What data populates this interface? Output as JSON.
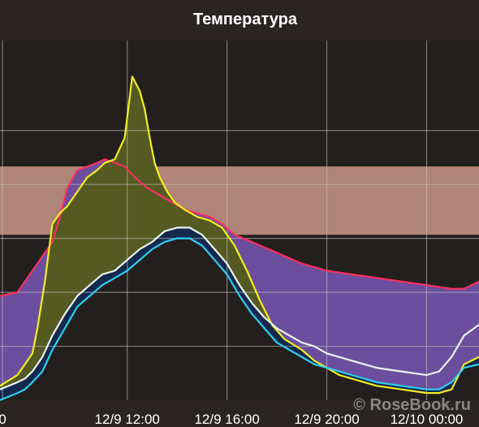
{
  "watermark": "© RoseBook.ru",
  "chart_data": {
    "type": "area",
    "title": "Температура",
    "xlabel": "",
    "ylabel": "",
    "x_tick_labels": [
      "0",
      "12/9 12:00",
      "12/9 16:00",
      "12/9 20:00",
      "12/10 00:00"
    ],
    "x_tick_hours": [
      7.0,
      12.0,
      16.0,
      20.0,
      24.0
    ],
    "x_range_hours": [
      6.9,
      26.1
    ],
    "y_range": [
      0,
      10
    ],
    "y_gridlines": [
      1.5,
      3.0,
      4.5,
      6.0,
      7.5
    ],
    "grid": true,
    "comfort_band": {
      "low": 4.6,
      "high": 6.5,
      "color": "#b08478"
    },
    "colors": {
      "red": "#ff2f5d",
      "yellow": "#f2ee22",
      "white": "#e9f2ec",
      "cyan": "#30cdf0",
      "green": "#69a26c",
      "blue": "#2d7fa8",
      "navy": "#13294e",
      "olive": "#545a22",
      "purple": "#6b4e9e",
      "gold": "#9f8b25"
    },
    "series": [
      {
        "color_key": "red",
        "x": [
          6.9,
          7.6,
          7.9,
          8.2,
          8.4,
          8.7,
          9.0,
          9.3,
          9.6,
          10.0,
          10.4,
          10.8,
          11.1,
          11.5,
          11.9,
          12.3,
          12.8,
          13.3,
          13.8,
          14.3,
          14.8,
          15.3,
          15.8,
          16.3,
          17.0,
          18.0,
          19.0,
          20.0,
          21.0,
          22.0,
          23.0,
          24.0,
          25.0,
          25.5,
          26.1
        ],
        "values": [
          2.9,
          3.0,
          3.3,
          3.6,
          3.8,
          4.1,
          4.4,
          5.1,
          5.9,
          6.4,
          6.5,
          6.6,
          6.7,
          6.6,
          6.5,
          6.2,
          5.9,
          5.7,
          5.5,
          5.3,
          5.2,
          5.1,
          4.9,
          4.6,
          4.4,
          4.1,
          3.8,
          3.6,
          3.5,
          3.4,
          3.3,
          3.2,
          3.1,
          3.1,
          3.3
        ]
      },
      {
        "color_key": "yellow",
        "x": [
          6.9,
          7.6,
          7.9,
          8.2,
          8.4,
          8.7,
          9.0,
          9.3,
          9.6,
          10.0,
          10.4,
          10.8,
          11.1,
          11.5,
          11.9,
          12.2,
          12.5,
          12.7,
          12.9,
          13.1,
          13.3,
          13.6,
          13.9,
          14.3,
          14.8,
          15.3,
          15.8,
          16.3,
          16.8,
          17.3,
          17.8,
          18.3,
          19.0,
          19.5,
          20.0,
          20.5,
          21.0,
          22.0,
          23.0,
          24.0,
          24.5,
          25.0,
          25.5,
          26.1
        ],
        "values": [
          0.4,
          0.7,
          1.0,
          1.3,
          2.0,
          3.3,
          4.9,
          5.2,
          5.4,
          5.8,
          6.2,
          6.4,
          6.6,
          6.7,
          7.3,
          9.0,
          8.6,
          8.1,
          7.3,
          6.6,
          6.2,
          5.8,
          5.5,
          5.3,
          5.1,
          5.0,
          4.8,
          4.3,
          3.6,
          2.8,
          2.1,
          1.7,
          1.4,
          1.1,
          0.9,
          0.7,
          0.6,
          0.4,
          0.3,
          0.2,
          0.2,
          0.3,
          1.0,
          1.2
        ]
      },
      {
        "color_key": "white",
        "x": [
          6.9,
          7.6,
          7.9,
          8.2,
          8.6,
          9.0,
          9.5,
          10.0,
          10.5,
          11.0,
          11.5,
          12.0,
          12.5,
          13.0,
          13.5,
          14.0,
          14.5,
          15.0,
          15.5,
          16.0,
          16.5,
          17.0,
          17.5,
          18.0,
          18.5,
          19.0,
          19.5,
          20.0,
          21.0,
          22.0,
          23.0,
          24.0,
          24.5,
          25.0,
          25.5,
          26.1
        ],
        "values": [
          0.3,
          0.5,
          0.6,
          0.8,
          1.2,
          1.8,
          2.4,
          2.9,
          3.2,
          3.5,
          3.6,
          3.9,
          4.2,
          4.4,
          4.7,
          4.8,
          4.8,
          4.6,
          4.2,
          3.8,
          3.2,
          2.7,
          2.3,
          2.0,
          1.8,
          1.6,
          1.5,
          1.3,
          1.1,
          0.9,
          0.8,
          0.7,
          0.8,
          1.2,
          1.8,
          2.1
        ]
      },
      {
        "color_key": "cyan",
        "x": [
          6.9,
          7.6,
          7.9,
          8.2,
          8.6,
          9.0,
          9.5,
          10.0,
          10.5,
          11.0,
          11.5,
          12.0,
          12.5,
          13.0,
          13.5,
          14.0,
          14.5,
          15.0,
          15.5,
          16.0,
          16.5,
          17.0,
          17.5,
          18.0,
          18.5,
          19.0,
          19.5,
          20.0,
          21.0,
          22.0,
          23.0,
          24.0,
          24.5,
          25.0,
          25.5,
          26.1
        ],
        "values": [
          0.0,
          0.2,
          0.3,
          0.5,
          0.8,
          1.4,
          2.0,
          2.6,
          2.9,
          3.2,
          3.4,
          3.6,
          3.9,
          4.2,
          4.4,
          4.5,
          4.5,
          4.3,
          3.9,
          3.5,
          2.9,
          2.4,
          2.0,
          1.6,
          1.4,
          1.2,
          1.0,
          0.9,
          0.7,
          0.5,
          0.4,
          0.3,
          0.3,
          0.5,
          0.9,
          1.0
        ]
      }
    ]
  }
}
